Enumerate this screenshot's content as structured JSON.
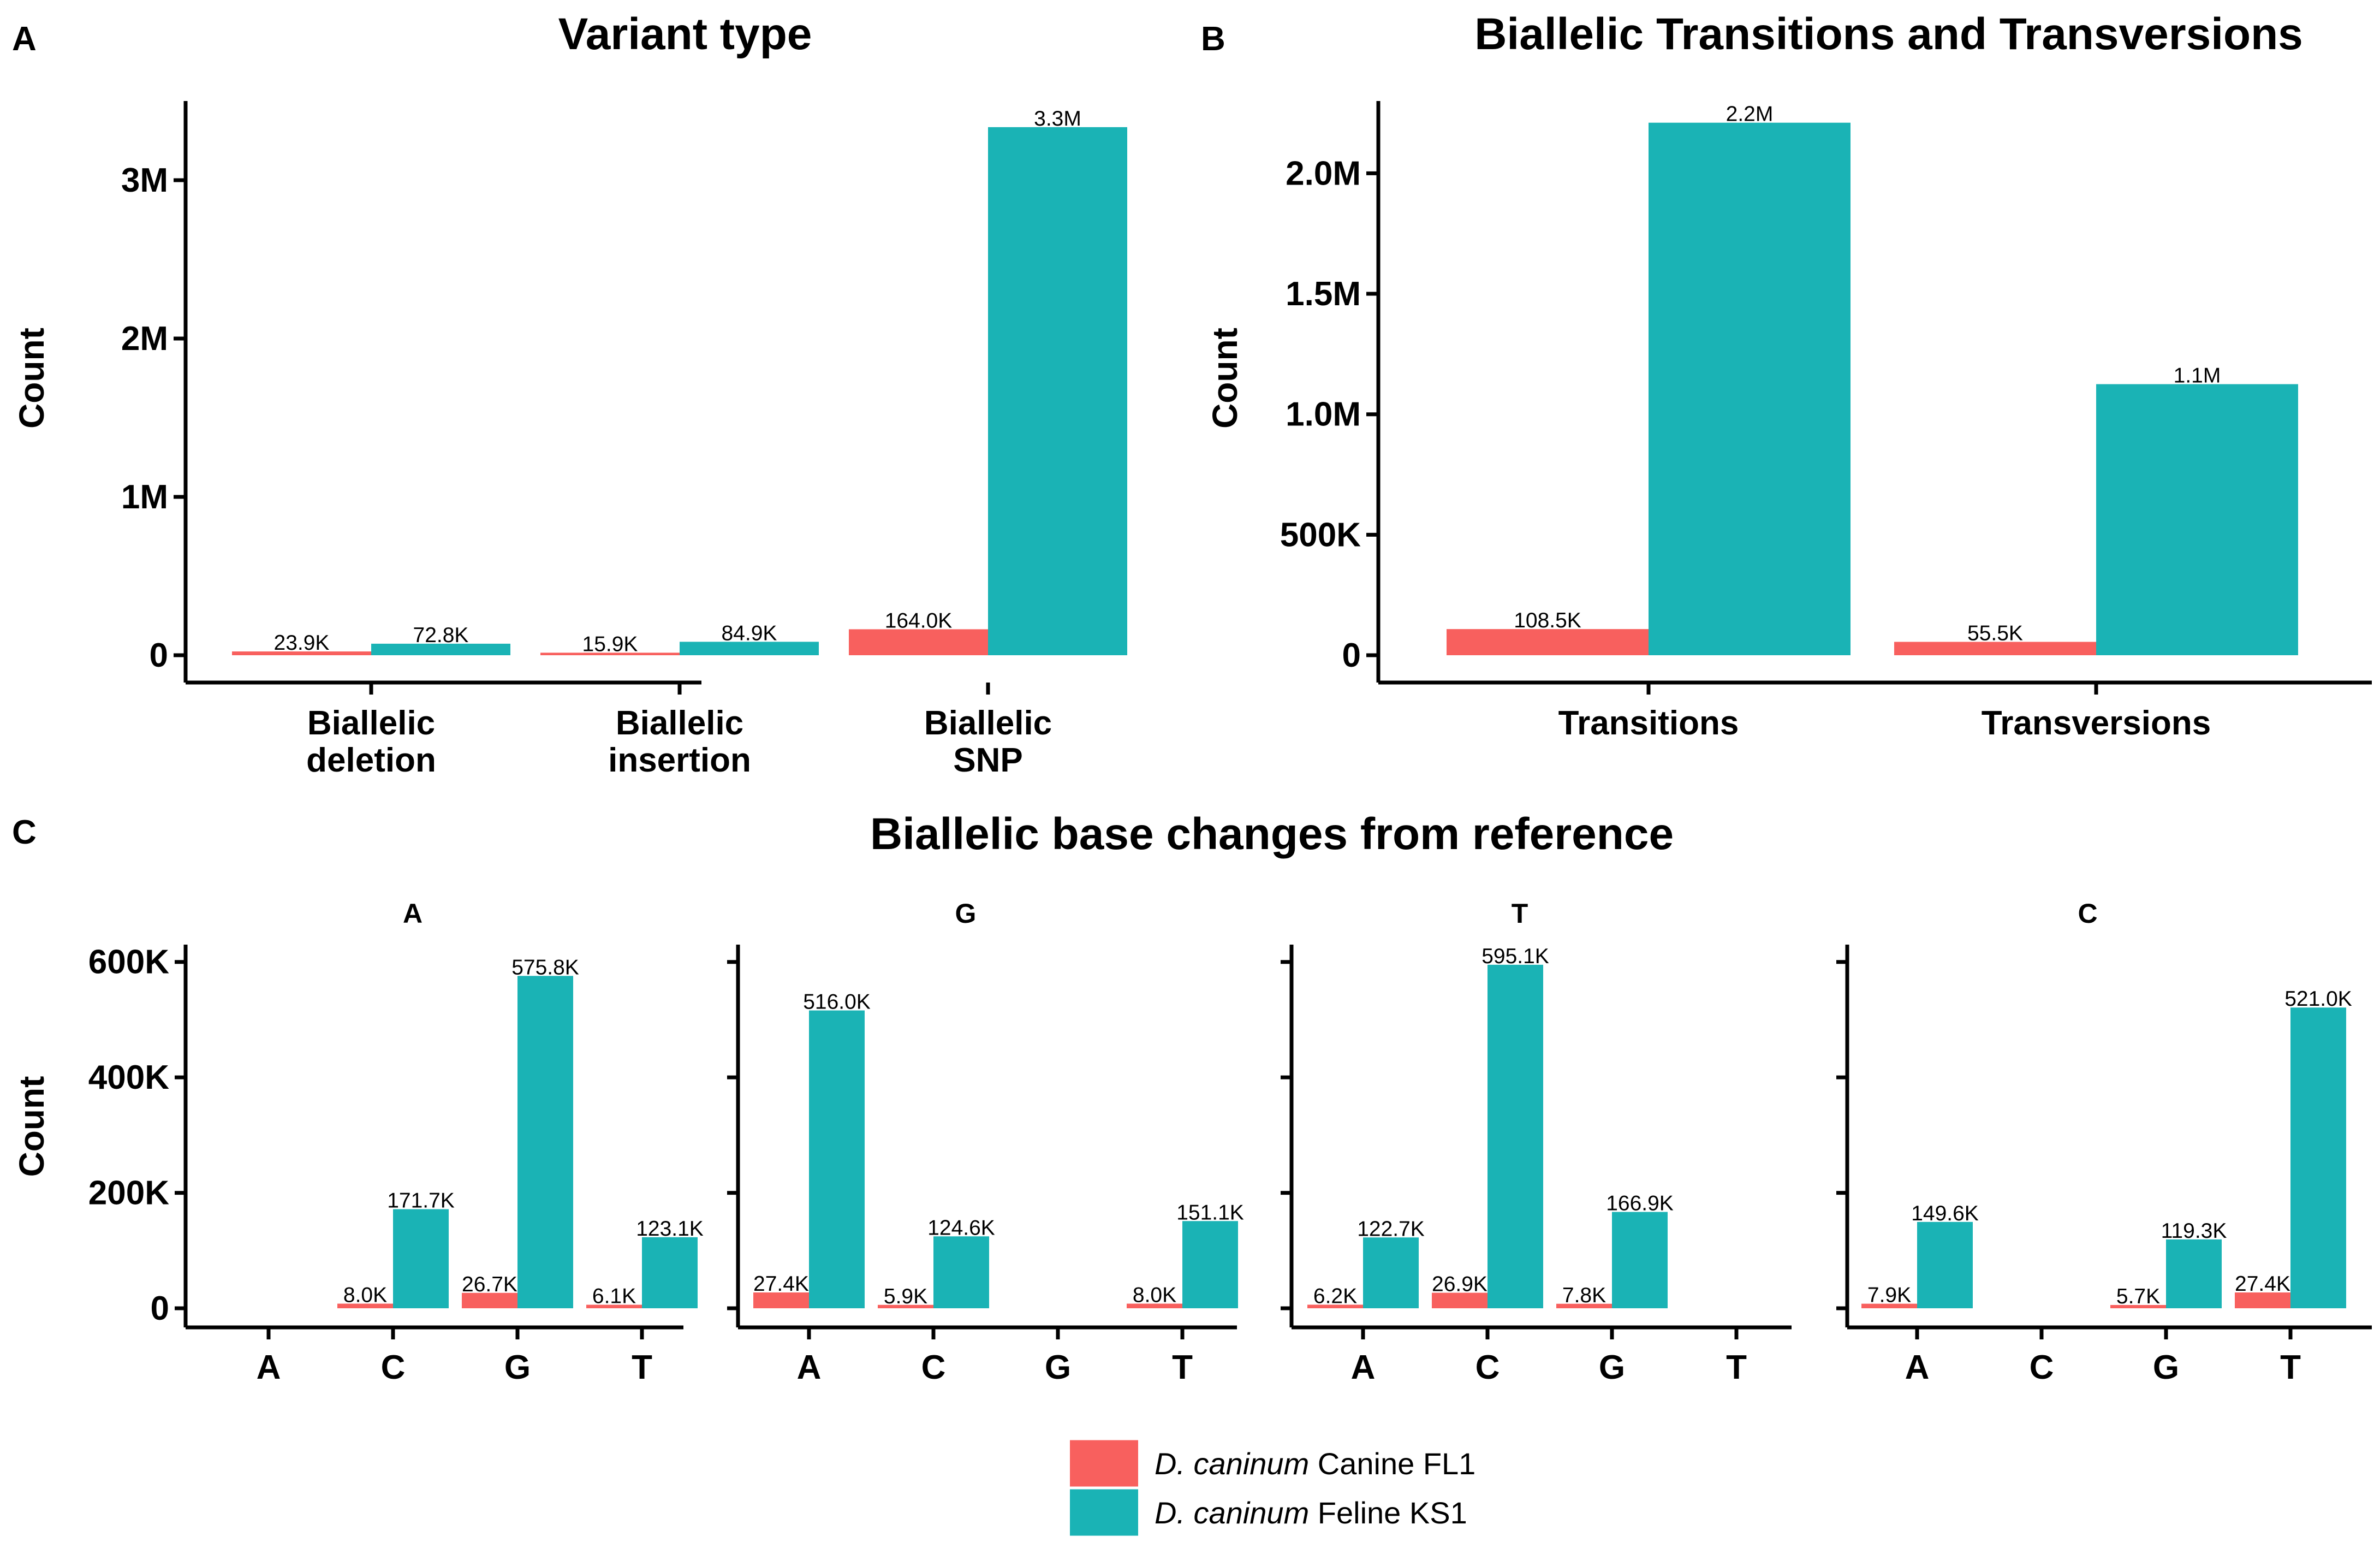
{
  "colors": {
    "canine": "#F8605E",
    "feline": "#1AB3B5"
  },
  "legend": [
    {
      "italic": "D. caninum",
      "rest": " Canine FL1",
      "color_key": "canine"
    },
    {
      "italic": "D. caninum",
      "rest": " Feline KS1",
      "color_key": "feline"
    }
  ],
  "chart_data": [
    {
      "panel_label": "A",
      "type": "bar",
      "title": "Variant type",
      "ylabel": "Count",
      "xlabel": "",
      "ylim": [
        0,
        3500000
      ],
      "yticks": [
        0,
        1000000,
        2000000,
        3000000
      ],
      "ytick_labels": [
        "0",
        "1M",
        "2M",
        "3M"
      ],
      "categories": [
        [
          "Biallelic",
          "deletion"
        ],
        [
          "Biallelic",
          "insertion"
        ],
        [
          "Biallelic",
          "SNP"
        ]
      ],
      "series": [
        {
          "name": "D. caninum Canine FL1",
          "color_key": "canine",
          "values": [
            23900,
            15900,
            164000
          ],
          "labels": [
            "23.9K",
            "15.9K",
            "164.0K"
          ]
        },
        {
          "name": "D. caninum Feline KS1",
          "color_key": "feline",
          "values": [
            72800,
            84900,
            3335000
          ],
          "labels": [
            "72.8K",
            "84.9K",
            "3.3M"
          ]
        }
      ]
    },
    {
      "panel_label": "B",
      "type": "bar",
      "title": "Biallelic Transitions and Transversions",
      "ylabel": "Count",
      "xlabel": "",
      "ylim": [
        0,
        2300000
      ],
      "yticks": [
        0,
        500000,
        1000000,
        1500000,
        2000000
      ],
      "ytick_labels": [
        "0",
        "500K",
        "1.0M",
        "1.5M",
        "2.0M"
      ],
      "categories": [
        [
          "Transitions"
        ],
        [
          "Transversions"
        ]
      ],
      "series": [
        {
          "name": "D. caninum Canine FL1",
          "color_key": "canine",
          "values": [
            108500,
            55500
          ],
          "labels": [
            "108.5K",
            "55.5K"
          ]
        },
        {
          "name": "D. caninum Feline KS1",
          "color_key": "feline",
          "values": [
            2210000,
            1125000
          ],
          "labels": [
            "2.2M",
            "1.1M"
          ]
        }
      ]
    },
    {
      "panel_label": "C",
      "type": "bar",
      "title": "Biallelic base changes from reference",
      "ylabel": "Count",
      "xlabel": "",
      "ylim": [
        0,
        630000
      ],
      "yticks": [
        0,
        200000,
        400000,
        600000
      ],
      "ytick_labels": [
        "0",
        "200K",
        "400K",
        "600K"
      ],
      "categories": [
        [
          "A"
        ],
        [
          "C"
        ],
        [
          "G"
        ],
        [
          "T"
        ]
      ],
      "facets": [
        {
          "name": "A",
          "series": [
            {
              "color_key": "canine",
              "values": [
                null,
                8000,
                26700,
                6100
              ],
              "labels": [
                null,
                "8.0K",
                "26.7K",
                "6.1K"
              ]
            },
            {
              "color_key": "feline",
              "values": [
                null,
                171700,
                575800,
                123100
              ],
              "labels": [
                null,
                "171.7K",
                "575.8K",
                "123.1K"
              ]
            }
          ]
        },
        {
          "name": "G",
          "series": [
            {
              "color_key": "canine",
              "values": [
                27400,
                5900,
                null,
                8000
              ],
              "labels": [
                "27.4K",
                "5.9K",
                null,
                "8.0K"
              ]
            },
            {
              "color_key": "feline",
              "values": [
                516000,
                124600,
                null,
                151100
              ],
              "labels": [
                "516.0K",
                "124.6K",
                null,
                "151.1K"
              ]
            }
          ]
        },
        {
          "name": "T",
          "series": [
            {
              "color_key": "canine",
              "values": [
                6200,
                26900,
                7800,
                null
              ],
              "labels": [
                "6.2K",
                "26.9K",
                "7.8K",
                null
              ]
            },
            {
              "color_key": "feline",
              "values": [
                122700,
                595100,
                166900,
                null
              ],
              "labels": [
                "122.7K",
                "595.1K",
                "166.9K",
                null
              ]
            }
          ]
        },
        {
          "name": "C",
          "series": [
            {
              "color_key": "canine",
              "values": [
                7900,
                null,
                5700,
                27400
              ],
              "labels": [
                "7.9K",
                null,
                "5.7K",
                "27.4K"
              ]
            },
            {
              "color_key": "feline",
              "values": [
                149600,
                null,
                119300,
                521000
              ],
              "labels": [
                "149.6K",
                null,
                "119.3K",
                "521.0K"
              ]
            }
          ]
        }
      ]
    }
  ]
}
